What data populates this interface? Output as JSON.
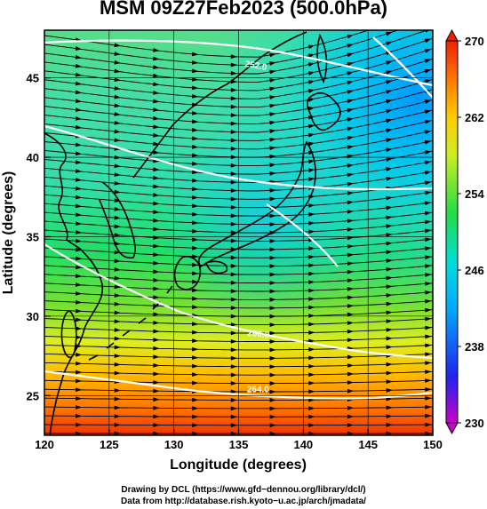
{
  "title": "MSM 09Z27Feb2023 (500.0hPa)",
  "x_axis": {
    "label": "Longitude (degrees)",
    "min": 120,
    "max": 150,
    "ticks": [
      "120",
      "125",
      "130",
      "135",
      "140",
      "145",
      "150"
    ]
  },
  "y_axis": {
    "label": "Latitude  (degrees)",
    "min": 22.5,
    "max": 48,
    "ticks": [
      "25",
      "30",
      "35",
      "40",
      "45"
    ]
  },
  "colorbar": {
    "min": 230,
    "max": 270,
    "labels": [
      "270",
      "262",
      "254",
      "246",
      "238",
      "230"
    ],
    "colors": [
      "#cc00cc",
      "#2222ee",
      "#00aaff",
      "#00dddd",
      "#22dd44",
      "#ccee22",
      "#ffcc00",
      "#ff7700",
      "#ee2200"
    ]
  },
  "contour_labels": [
    {
      "text": "252.0",
      "lon": 136.3,
      "lat": 45.6,
      "rot": 10
    },
    {
      "text": "260.0",
      "lon": 136.5,
      "lat": 28.7,
      "rot": 6
    },
    {
      "text": "264.0",
      "lon": 136.5,
      "lat": 25.2,
      "rot": 0
    }
  ],
  "credits": [
    "Drawing by DCL (https://www.gfd−dennou.org/library/dcl/)",
    "Data from http://database.rish.kyoto−u.ac.jp/arch/jmadata/"
  ]
}
